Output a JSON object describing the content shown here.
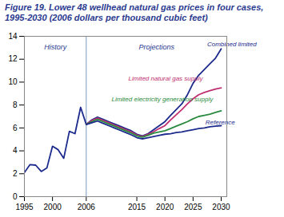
{
  "chart_data": {
    "type": "line",
    "title": "Figure 19. Lower 48 wellhead natural gas prices in four cases, 1995-2030 (2006 dollars per thousand cubic feet)",
    "title_color": "#2B3A8F",
    "xlim": [
      1995,
      2031
    ],
    "ylim": [
      0,
      14
    ],
    "xticks": [
      1995,
      2000,
      2006,
      2015,
      2020,
      2025,
      2030
    ],
    "yticks": [
      0,
      2,
      4,
      6,
      8,
      10,
      12,
      14
    ],
    "grid": false,
    "vline": 2006,
    "annotations": [
      {
        "text": "History",
        "x": 2000.5,
        "y": 13.3
      },
      {
        "text": "Projections",
        "x": 2018.5,
        "y": 13.3
      }
    ],
    "series": [
      {
        "color": "#1C2B8C",
        "x": [
          1995,
          1996,
          1997,
          1998,
          1999,
          2000,
          2001,
          2002,
          2003,
          2004,
          2005,
          2006
        ],
        "values": [
          2.1,
          2.8,
          2.75,
          2.2,
          2.5,
          4.4,
          4.1,
          3.35,
          5.7,
          5.5,
          7.8,
          6.3
        ]
      },
      {
        "name": "Combined limited",
        "color": "#1C2B8C",
        "label_at": {
          "x": 2027.5,
          "y": 13.3
        },
        "x": [
          2006,
          2007,
          2008,
          2009,
          2010,
          2011,
          2012,
          2013,
          2014,
          2015,
          2016,
          2017,
          2018,
          2019,
          2020,
          2021,
          2022,
          2023,
          2024,
          2025,
          2026,
          2027,
          2028,
          2029,
          2030
        ],
        "values": [
          6.3,
          6.7,
          6.95,
          6.75,
          6.55,
          6.35,
          6.15,
          5.95,
          5.75,
          5.45,
          5.3,
          5.5,
          5.85,
          6.2,
          6.55,
          7.1,
          7.6,
          8.1,
          8.9,
          9.9,
          10.6,
          11.1,
          11.6,
          12.1,
          12.9
        ]
      },
      {
        "name": "Limited natural gas supply",
        "color": "#C03070",
        "label_at": {
          "x": 2013.5,
          "y": 10.3
        },
        "x": [
          2006,
          2007,
          2008,
          2009,
          2010,
          2011,
          2012,
          2013,
          2014,
          2015,
          2016,
          2017,
          2018,
          2019,
          2020,
          2021,
          2022,
          2023,
          2024,
          2025,
          2026,
          2027,
          2028,
          2029,
          2030
        ],
        "values": [
          6.3,
          6.65,
          6.85,
          6.65,
          6.45,
          6.25,
          6.05,
          5.85,
          5.65,
          5.38,
          5.25,
          5.45,
          5.68,
          5.95,
          6.2,
          6.7,
          7.15,
          7.6,
          8.1,
          8.55,
          8.9,
          9.1,
          9.25,
          9.4,
          9.5
        ]
      },
      {
        "name": "Limited electricity generation supply",
        "color": "#2A8B40",
        "label_at": {
          "x": 2010.5,
          "y": 8.5
        },
        "x": [
          2006,
          2007,
          2008,
          2009,
          2010,
          2011,
          2012,
          2013,
          2014,
          2015,
          2016,
          2017,
          2018,
          2019,
          2020,
          2021,
          2022,
          2023,
          2024,
          2025,
          2026,
          2027,
          2028,
          2029,
          2030
        ],
        "values": [
          6.3,
          6.55,
          6.75,
          6.55,
          6.35,
          6.15,
          5.95,
          5.75,
          5.55,
          5.3,
          5.2,
          5.35,
          5.55,
          5.65,
          5.75,
          5.95,
          6.15,
          6.35,
          6.55,
          6.8,
          7.0,
          7.1,
          7.2,
          7.35,
          7.5
        ]
      },
      {
        "name": "Reference",
        "color": "#1C2B8C",
        "label_at": {
          "x": 2027.2,
          "y": 6.5
        },
        "x": [
          2006,
          2007,
          2008,
          2009,
          2010,
          2011,
          2012,
          2013,
          2014,
          2015,
          2016,
          2017,
          2018,
          2019,
          2020,
          2021,
          2022,
          2023,
          2024,
          2025,
          2026,
          2027,
          2028,
          2029,
          2030
        ],
        "values": [
          6.3,
          6.45,
          6.6,
          6.4,
          6.2,
          6.0,
          5.8,
          5.6,
          5.4,
          5.15,
          5.05,
          5.15,
          5.25,
          5.35,
          5.45,
          5.5,
          5.6,
          5.65,
          5.75,
          5.85,
          5.95,
          6.0,
          6.1,
          6.15,
          6.2
        ]
      }
    ]
  }
}
